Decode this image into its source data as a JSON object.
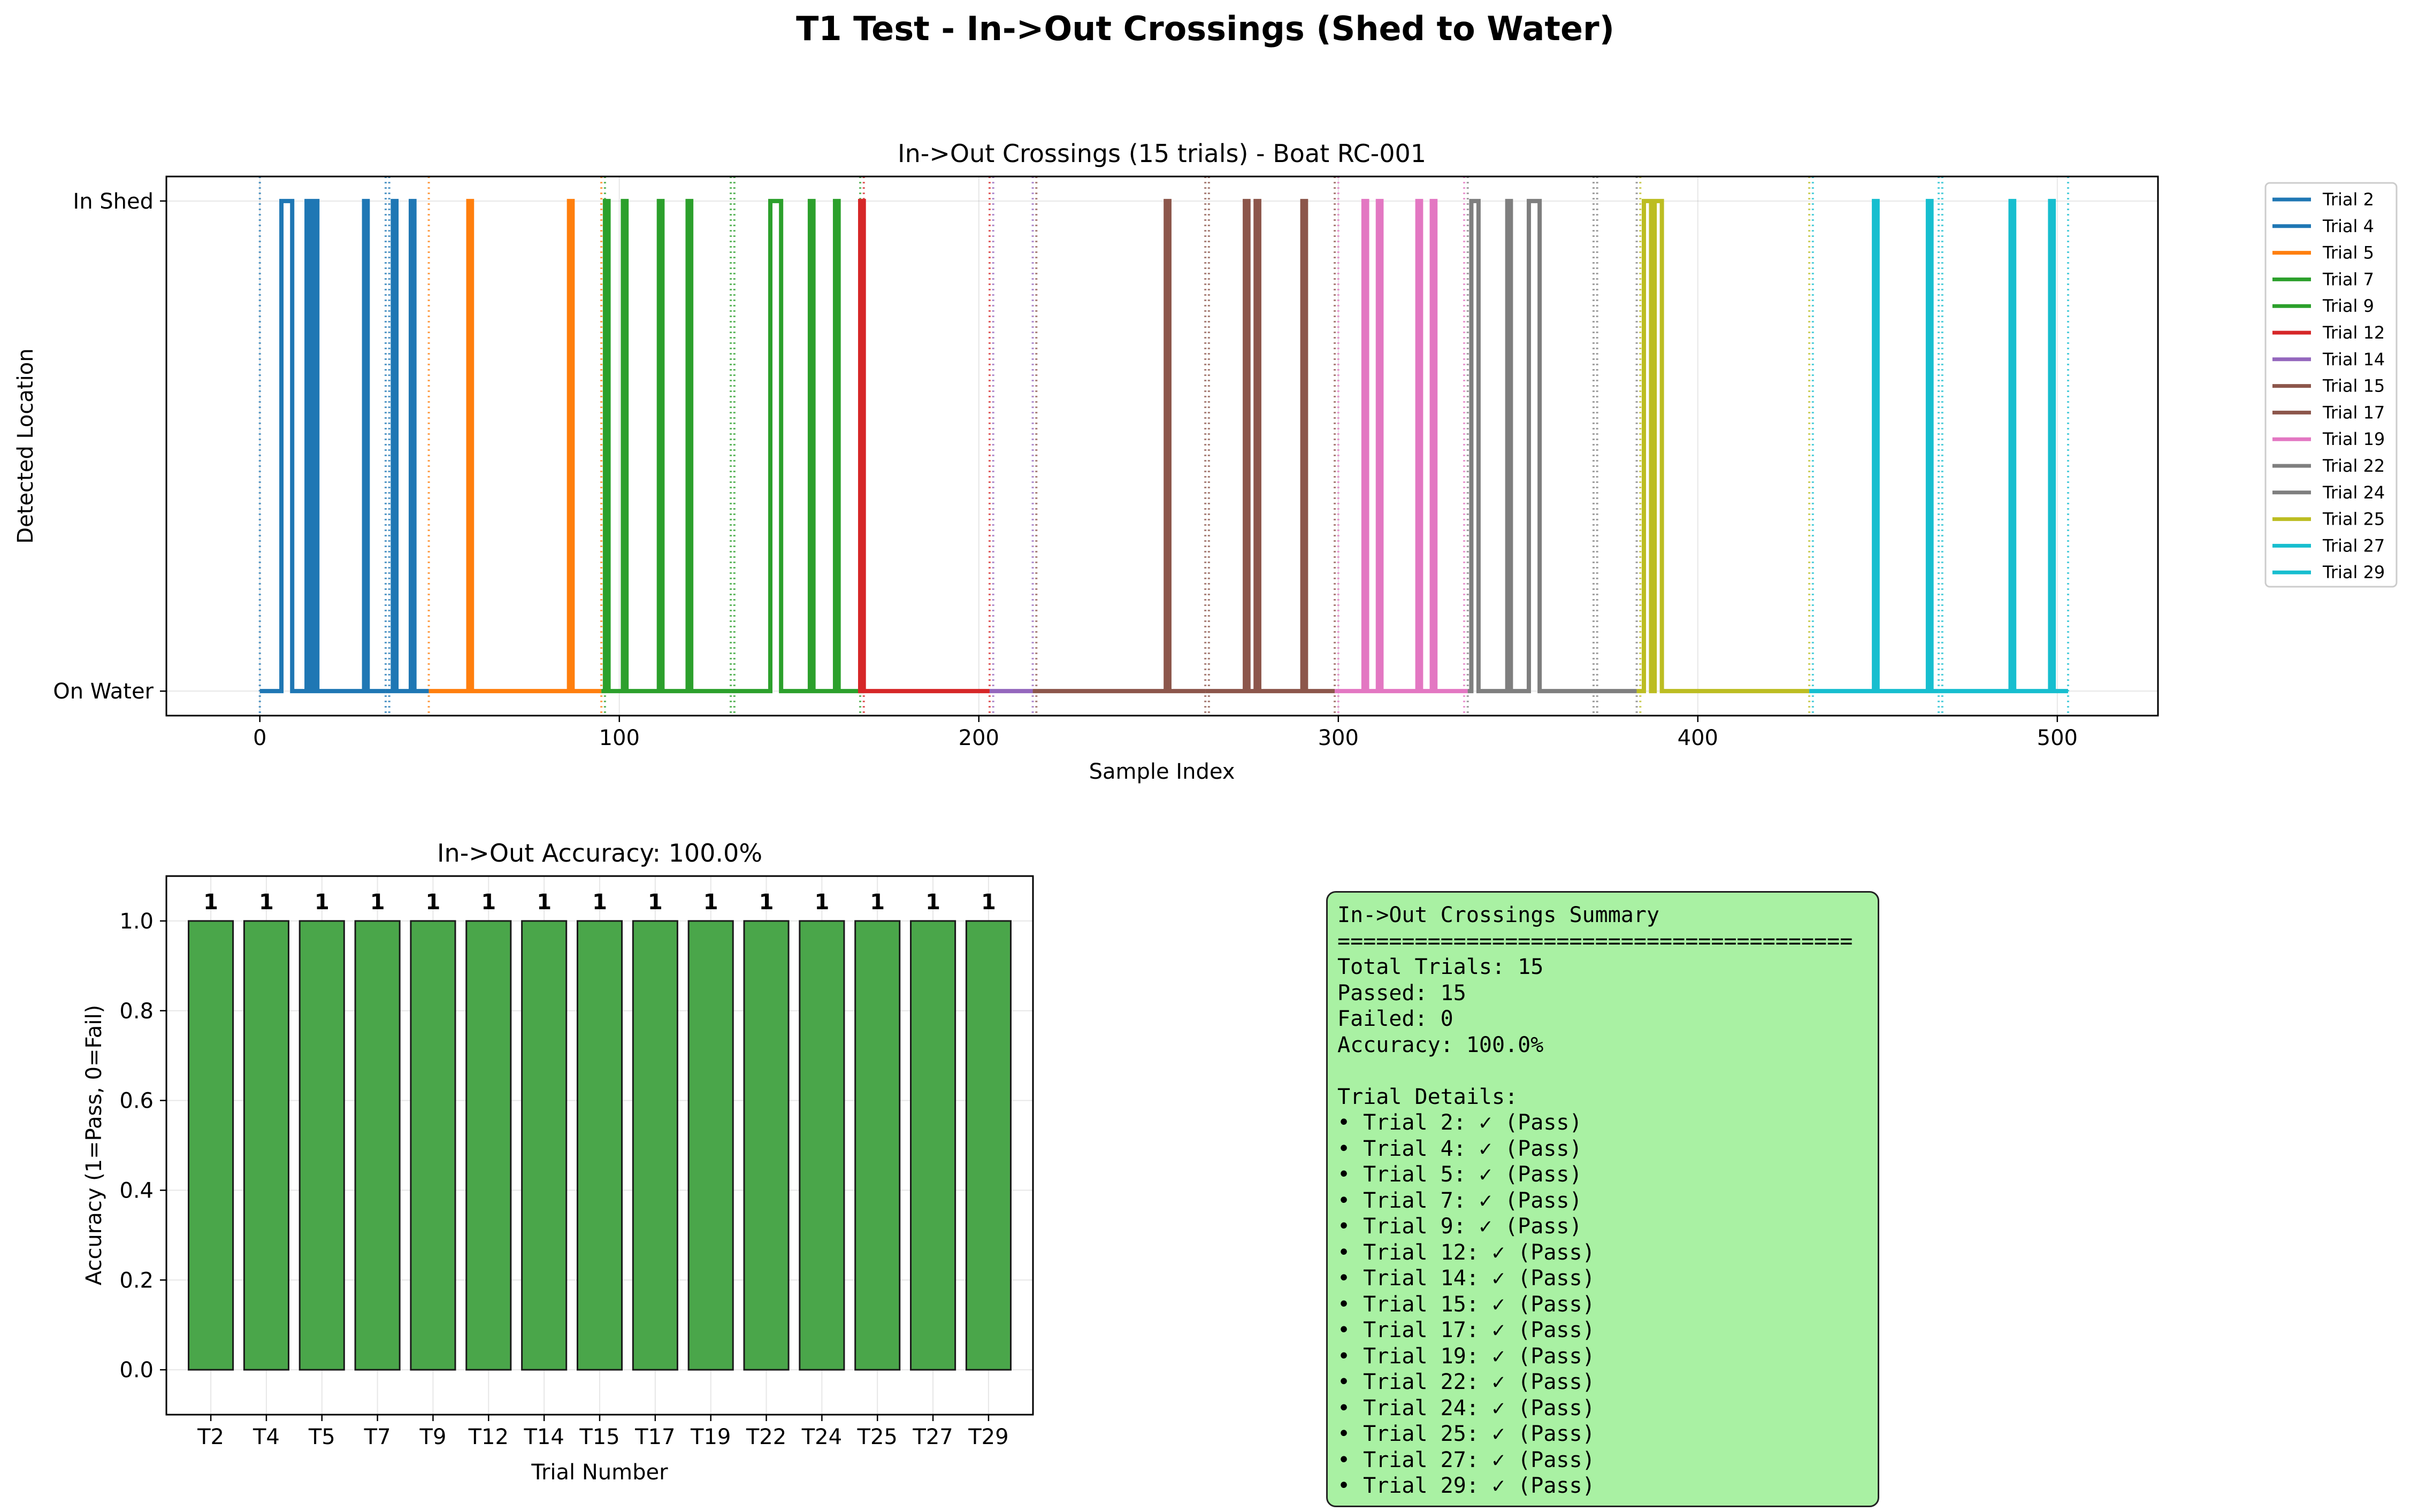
{
  "figure": {
    "suptitle": "T1 Test - In->Out Crossings (Shed to Water)"
  },
  "colors": {
    "tab_blue": "#1f77b4",
    "tab_orange": "#ff7f0e",
    "tab_green": "#2ca02c",
    "tab_red": "#d62728",
    "tab_purple": "#9467bd",
    "tab_brown": "#8c564b",
    "tab_pink": "#e377c2",
    "tab_gray": "#7f7f7f",
    "tab_olive": "#bcbd22",
    "tab_cyan": "#17becf",
    "bar_green": "#4aa64a",
    "summary_bg": "#a9f1a3"
  },
  "chart_data": [
    {
      "type": "line",
      "title": "In->Out Crossings (15 trials) - Boat RC-001",
      "xlabel": "Sample Index",
      "ylabel": "Detected Location",
      "xlim": [
        -26,
        528
      ],
      "ylim": [
        -0.05,
        1.05
      ],
      "xticks": [
        0,
        100,
        200,
        300,
        400,
        500
      ],
      "ytick_labels": [
        "On Water",
        "In Shed"
      ],
      "grid": true,
      "legend_position": "outside-right",
      "series": [
        {
          "name": "Trial 2",
          "color": "#1f77b4",
          "start": 0,
          "end": 35,
          "pulses": [
            [
              6,
              9
            ],
            [
              13,
              14
            ],
            [
              15,
              16
            ],
            [
              29,
              30
            ]
          ]
        },
        {
          "name": "Trial 4",
          "color": "#1f77b4",
          "start": 35,
          "end": 47,
          "pulses": [
            [
              37,
              38
            ],
            [
              42,
              43
            ]
          ]
        },
        {
          "name": "Trial 5",
          "color": "#ff7f0e",
          "start": 47,
          "end": 95,
          "pulses": [
            [
              58,
              59
            ],
            [
              86,
              87
            ]
          ]
        },
        {
          "name": "Trial 7",
          "color": "#2ca02c",
          "start": 95,
          "end": 131,
          "pulses": [
            [
              96,
              97
            ],
            [
              101,
              102
            ],
            [
              111,
              112
            ],
            [
              119,
              120
            ]
          ]
        },
        {
          "name": "Trial 9",
          "color": "#2ca02c",
          "start": 131,
          "end": 168,
          "pulses": [
            [
              142,
              145
            ],
            [
              153,
              154
            ],
            [
              160,
              161
            ]
          ]
        },
        {
          "name": "Trial 12",
          "color": "#d62728",
          "start": 168,
          "end": 203,
          "pulses": [
            [
              167,
              168
            ]
          ]
        },
        {
          "name": "Trial 14",
          "color": "#9467bd",
          "start": 203,
          "end": 215,
          "pulses": []
        },
        {
          "name": "Trial 15",
          "color": "#8c564b",
          "start": 215,
          "end": 263,
          "pulses": [
            [
              252,
              253
            ]
          ]
        },
        {
          "name": "Trial 17",
          "color": "#8c564b",
          "start": 263,
          "end": 299,
          "pulses": [
            [
              274,
              275
            ],
            [
              277,
              278
            ],
            [
              290,
              291
            ]
          ]
        },
        {
          "name": "Trial 19",
          "color": "#e377c2",
          "start": 299,
          "end": 336,
          "pulses": [
            [
              307,
              308
            ],
            [
              311,
              312
            ],
            [
              322,
              323
            ],
            [
              326,
              327
            ]
          ]
        },
        {
          "name": "Trial 22",
          "color": "#7f7f7f",
          "start": 336,
          "end": 371,
          "pulses": [
            [
              337,
              339
            ],
            [
              347,
              348
            ],
            [
              353,
              356
            ]
          ]
        },
        {
          "name": "Trial 24",
          "color": "#7f7f7f",
          "start": 371,
          "end": 383,
          "pulses": []
        },
        {
          "name": "Trial 25",
          "color": "#bcbd22",
          "start": 383,
          "end": 431,
          "pulses": [
            [
              385,
              387
            ],
            [
              388,
              390
            ]
          ]
        },
        {
          "name": "Trial 27",
          "color": "#17becf",
          "start": 431,
          "end": 467,
          "pulses": [
            [
              449,
              450
            ],
            [
              464,
              465
            ]
          ]
        },
        {
          "name": "Trial 29",
          "color": "#17becf",
          "start": 467,
          "end": 503,
          "pulses": [
            [
              487,
              488
            ],
            [
              498,
              499
            ]
          ]
        }
      ],
      "boundaries": [
        {
          "x": 0,
          "color": "#1f77b4"
        },
        {
          "x": 35,
          "color": "#1f77b4"
        },
        {
          "x": 36,
          "color": "#1f77b4"
        },
        {
          "x": 47,
          "color": "#ff7f0e"
        },
        {
          "x": 95,
          "color": "#ff7f0e"
        },
        {
          "x": 96,
          "color": "#2ca02c"
        },
        {
          "x": 131,
          "color": "#2ca02c"
        },
        {
          "x": 132,
          "color": "#2ca02c"
        },
        {
          "x": 167,
          "color": "#2ca02c"
        },
        {
          "x": 168,
          "color": "#d62728"
        },
        {
          "x": 203,
          "color": "#d62728"
        },
        {
          "x": 204,
          "color": "#9467bd"
        },
        {
          "x": 215,
          "color": "#9467bd"
        },
        {
          "x": 216,
          "color": "#8c564b"
        },
        {
          "x": 263,
          "color": "#8c564b"
        },
        {
          "x": 264,
          "color": "#8c564b"
        },
        {
          "x": 299,
          "color": "#8c564b"
        },
        {
          "x": 300,
          "color": "#e377c2"
        },
        {
          "x": 335,
          "color": "#e377c2"
        },
        {
          "x": 336,
          "color": "#7f7f7f"
        },
        {
          "x": 371,
          "color": "#7f7f7f"
        },
        {
          "x": 372,
          "color": "#7f7f7f"
        },
        {
          "x": 383,
          "color": "#7f7f7f"
        },
        {
          "x": 384,
          "color": "#bcbd22"
        },
        {
          "x": 431,
          "color": "#bcbd22"
        },
        {
          "x": 432,
          "color": "#17becf"
        },
        {
          "x": 467,
          "color": "#17becf"
        },
        {
          "x": 468,
          "color": "#17becf"
        },
        {
          "x": 503,
          "color": "#17becf"
        }
      ]
    },
    {
      "type": "bar",
      "title": "In->Out Accuracy: 100.0%",
      "xlabel": "Trial Number",
      "ylabel": "Accuracy (1=Pass, 0=Fail)",
      "categories": [
        "T2",
        "T4",
        "T5",
        "T7",
        "T9",
        "T12",
        "T14",
        "T15",
        "T17",
        "T19",
        "T22",
        "T24",
        "T25",
        "T27",
        "T29"
      ],
      "values": [
        1,
        1,
        1,
        1,
        1,
        1,
        1,
        1,
        1,
        1,
        1,
        1,
        1,
        1,
        1
      ],
      "value_labels": [
        "1",
        "1",
        "1",
        "1",
        "1",
        "1",
        "1",
        "1",
        "1",
        "1",
        "1",
        "1",
        "1",
        "1",
        "1"
      ],
      "ylim": [
        -0.1,
        1.1
      ],
      "yticks": [
        "0.0",
        "0.2",
        "0.4",
        "0.6",
        "0.8",
        "1.0"
      ],
      "grid": true,
      "bar_color": "#4aa64a"
    }
  ],
  "summary": {
    "lines": [
      "In->Out Crossings Summary",
      "========================================",
      "Total Trials: 15",
      "Passed: 15",
      "Failed: 0",
      "Accuracy: 100.0%",
      "",
      "Trial Details:",
      "• Trial 2: ✓ (Pass)",
      "• Trial 4: ✓ (Pass)",
      "• Trial 5: ✓ (Pass)",
      "• Trial 7: ✓ (Pass)",
      "• Trial 9: ✓ (Pass)",
      "• Trial 12: ✓ (Pass)",
      "• Trial 14: ✓ (Pass)",
      "• Trial 15: ✓ (Pass)",
      "• Trial 17: ✓ (Pass)",
      "• Trial 19: ✓ (Pass)",
      "• Trial 22: ✓ (Pass)",
      "• Trial 24: ✓ (Pass)",
      "• Trial 25: ✓ (Pass)",
      "• Trial 27: ✓ (Pass)",
      "• Trial 29: ✓ (Pass)"
    ]
  }
}
